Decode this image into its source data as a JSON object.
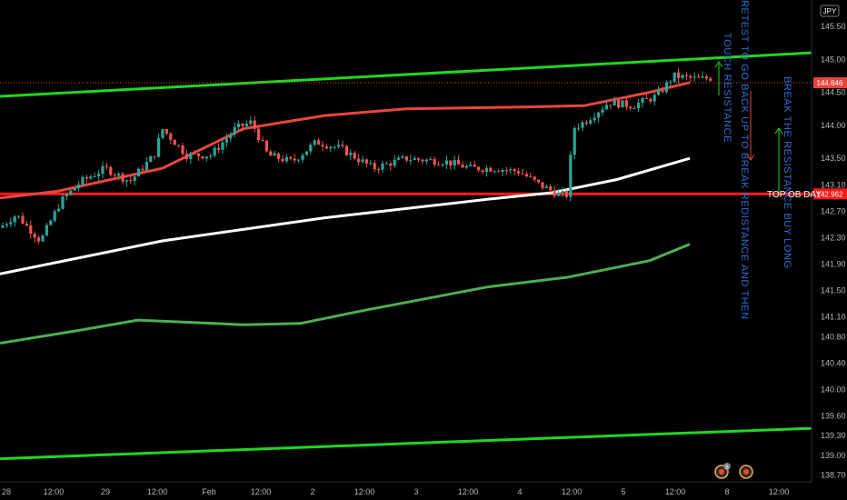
{
  "currency_badge": "JPY",
  "chart_data": {
    "type": "candlestick",
    "title": "",
    "ylim": [
      138.6,
      145.9
    ],
    "price_ticks": [
      "145.50",
      "145.00",
      "144.50",
      "144.00",
      "143.50",
      "143.10",
      "142.70",
      "142.30",
      "141.90",
      "141.50",
      "141.10",
      "140.80",
      "140.40",
      "140.00",
      "139.60",
      "139.30",
      "139.00",
      "138.70"
    ],
    "current_price": "144.646",
    "support_price": "142.962",
    "time_labels": [
      "28",
      "12:00",
      "29",
      "12:00",
      "Feb",
      "12:00",
      "2",
      "12:00",
      "3",
      "12:00",
      "4",
      "12:00",
      "5",
      "12:00",
      "8",
      "12:00"
    ],
    "lines": [
      {
        "name": "upper-trendline",
        "color": "#22d620",
        "from": {
          "x": 0,
          "y": 144.44
        },
        "to": {
          "x": 1,
          "y": 145.1
        }
      },
      {
        "name": "lower-trendline",
        "color": "#22d620",
        "from": {
          "x": 0,
          "y": 138.95
        },
        "to": {
          "x": 1,
          "y": 139.41
        }
      },
      {
        "name": "support-line",
        "color": "#ff1a1a",
        "y": 142.962
      }
    ],
    "moving_averages": [
      {
        "name": "ma-red",
        "color": "#e8463c",
        "points": [
          [
            0,
            142.9
          ],
          [
            0.07,
            143.0
          ],
          [
            0.2,
            143.35
          ],
          [
            0.3,
            143.95
          ],
          [
            0.4,
            144.15
          ],
          [
            0.5,
            144.25
          ],
          [
            0.65,
            144.28
          ],
          [
            0.72,
            144.3
          ],
          [
            0.8,
            144.5
          ],
          [
            0.85,
            144.65
          ]
        ]
      },
      {
        "name": "ma-white",
        "color": "#ffffff",
        "points": [
          [
            0,
            141.75
          ],
          [
            0.2,
            142.25
          ],
          [
            0.4,
            142.6
          ],
          [
            0.6,
            142.88
          ],
          [
            0.68,
            142.98
          ],
          [
            0.76,
            143.18
          ],
          [
            0.85,
            143.5
          ]
        ]
      },
      {
        "name": "ma-green",
        "color": "#4caf50",
        "points": [
          [
            0,
            140.7
          ],
          [
            0.1,
            140.9
          ],
          [
            0.17,
            141.05
          ],
          [
            0.3,
            140.98
          ],
          [
            0.37,
            141.0
          ],
          [
            0.45,
            141.2
          ],
          [
            0.6,
            141.55
          ],
          [
            0.7,
            141.7
          ],
          [
            0.8,
            141.95
          ],
          [
            0.85,
            142.2
          ]
        ]
      }
    ],
    "annotations": [
      {
        "text": "TOUCH RESISTANCE",
        "color": "#2f6fd6"
      },
      {
        "text": "RETEST TO GO BACK UP TO BREAK REDISTANCE AND THEN",
        "color": "#2f6fd6"
      },
      {
        "text": "BREAK THE RESISTANCE BUY LONG",
        "color": "#2f6fd6"
      },
      {
        "text": "TOP OB DAY",
        "color": "#ffffff"
      }
    ],
    "events": [
      {
        "label": "6"
      },
      {
        "label": ""
      }
    ]
  }
}
